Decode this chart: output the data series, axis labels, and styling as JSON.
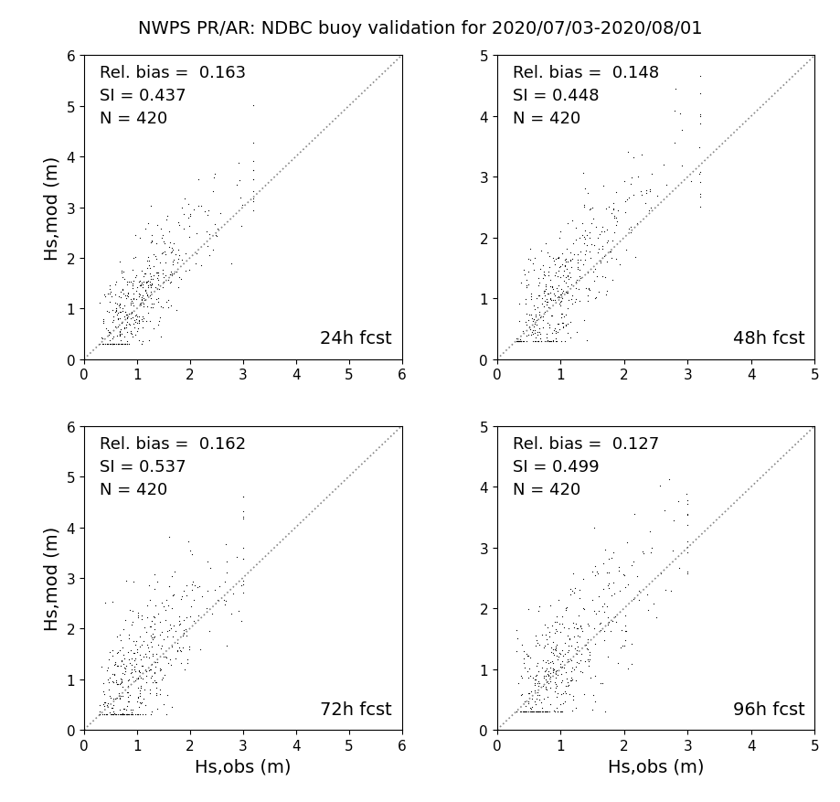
{
  "title": "NWPS PR/AR: NDBC buoy validation for 2020/07/03-2020/08/01",
  "title_fontsize": 14,
  "panels": [
    {
      "label": "24h fcst",
      "rel_bias": 0.163,
      "SI": 0.437,
      "N": 420,
      "xlim": [
        0,
        6
      ],
      "ylim": [
        0,
        6
      ],
      "xticks": [
        0,
        1,
        2,
        3,
        4,
        5,
        6
      ],
      "yticks": [
        0,
        1,
        2,
        3,
        4,
        5,
        6
      ],
      "seed": 42,
      "x_mean": 0.05,
      "x_sigma": 0.55,
      "x_clip_max": 3.2,
      "y_spread": 0.42
    },
    {
      "label": "48h fcst",
      "rel_bias": 0.148,
      "SI": 0.448,
      "N": 420,
      "xlim": [
        0,
        5
      ],
      "ylim": [
        0,
        5
      ],
      "xticks": [
        0,
        1,
        2,
        3,
        4,
        5
      ],
      "yticks": [
        0,
        1,
        2,
        3,
        4,
        5
      ],
      "seed": 43,
      "x_mean": 0.05,
      "x_sigma": 0.55,
      "x_clip_max": 3.2,
      "y_spread": 0.44
    },
    {
      "label": "72h fcst",
      "rel_bias": 0.162,
      "SI": 0.537,
      "N": 420,
      "xlim": [
        0,
        6
      ],
      "ylim": [
        0,
        6
      ],
      "xticks": [
        0,
        1,
        2,
        3,
        4,
        5,
        6
      ],
      "yticks": [
        0,
        1,
        2,
        3,
        4,
        5,
        6
      ],
      "seed": 44,
      "x_mean": 0.05,
      "x_sigma": 0.55,
      "x_clip_max": 3.0,
      "y_spread": 0.55
    },
    {
      "label": "96h fcst",
      "rel_bias": 0.127,
      "SI": 0.499,
      "N": 420,
      "xlim": [
        0,
        5
      ],
      "ylim": [
        0,
        5
      ],
      "xticks": [
        0,
        1,
        2,
        3,
        4,
        5
      ],
      "yticks": [
        0,
        1,
        2,
        3,
        4,
        5
      ],
      "seed": 45,
      "x_mean": 0.05,
      "x_sigma": 0.55,
      "x_clip_max": 3.0,
      "y_spread": 0.5
    }
  ],
  "xlabel": "Hs,obs (m)",
  "ylabel": "Hs,mod (m)",
  "dot_color": "#000000",
  "dot_size": 3,
  "dot_marker": ".",
  "diag_color": "#888888",
  "diag_linestyle": "dotted",
  "diag_linewidth": 1.2,
  "stats_fontsize": 13,
  "label_fontsize": 14,
  "tick_fontsize": 11,
  "background_color": "#ffffff"
}
